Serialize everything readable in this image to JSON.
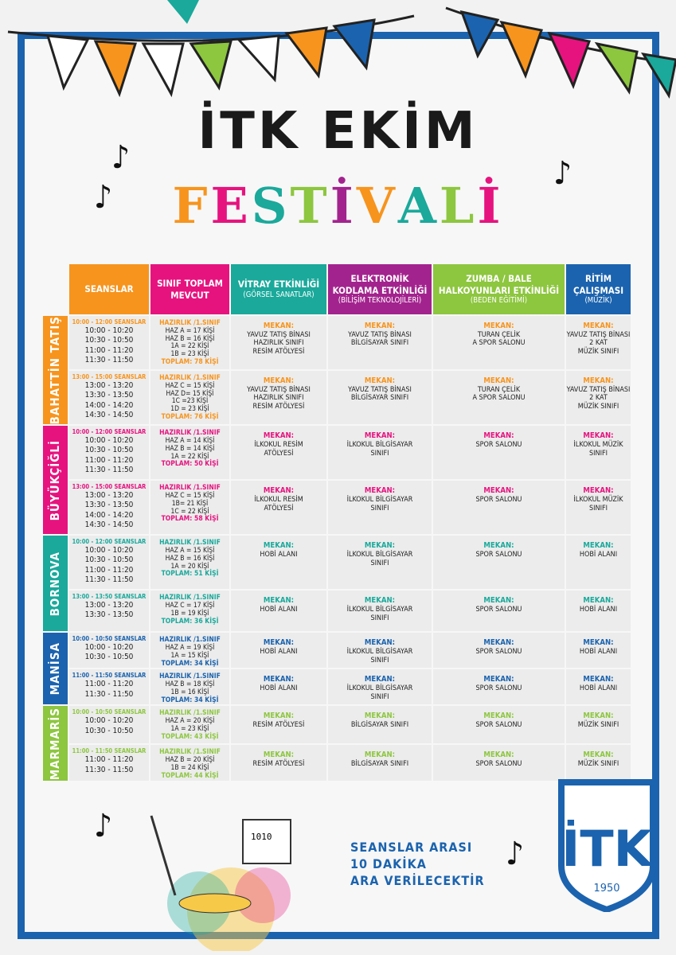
{
  "title": {
    "line1": "İTK EKİM",
    "line2": [
      "F",
      "E",
      "S",
      "T",
      "İ",
      "V",
      "A",
      "L",
      "İ"
    ]
  },
  "colors": {
    "orange": "#f7941d",
    "pink": "#e6137f",
    "teal": "#1aa99b",
    "purple": "#a3238e",
    "green": "#8dc63f",
    "blue": "#1b63ae"
  },
  "headers": [
    {
      "title": "SEANSLAR",
      "sub": "",
      "color": "#f7941d"
    },
    {
      "title": "SINIF TOPLAM MEVCUT",
      "sub": "",
      "color": "#e6137f"
    },
    {
      "title": "VİTRAY ETKİNLİĞİ",
      "sub": "(GÖRSEL SANATLAR)",
      "color": "#1aa99b"
    },
    {
      "title": "ELEKTRONİK KODLAMA ETKİNLİĞİ",
      "sub": "(BİLİŞİM TEKNOLOJİLERİ)",
      "color": "#a3238e"
    },
    {
      "title": "ZUMBA / BALE HALKOYUNLARI ETKİNLİĞİ",
      "sub": "(BEDEN EĞİTİMİ)",
      "color": "#8dc63f"
    },
    {
      "title": "RİTİM ÇALIŞMASI",
      "sub": "(MÜZİK)",
      "color": "#1b63ae"
    }
  ],
  "campuses": [
    {
      "name": "BAHATTİN TATIŞ",
      "color": "#f7941d",
      "sessions": [
        {
          "heading": "10:00 - 12:00 SEANSLAR",
          "times": [
            "10:00 - 10:20",
            "10:30 - 10:50",
            "11:00 - 11:20",
            "11:30 - 11:50"
          ],
          "class_head": "HAZIRLIK /1.SINIF",
          "classes": [
            "HAZ A = 17 KİŞİ",
            "HAZ B = 16 KİŞİ",
            "1A = 22 KİŞİ",
            "1B = 23 KİŞİ"
          ],
          "total": "TOPLAM: 78 KİŞİ",
          "label": "MEKAN:",
          "venues": [
            "YAVUZ TATIŞ BİNASI\nHAZIRLIK SINIFI\nRESİM ATÖLYESİ",
            "YAVUZ TATIŞ BİNASI\nBİLGİSAYAR SINIFI",
            "TURAN ÇELİK\nA SPOR SALONU",
            "YAVUZ TATIŞ BİNASI\n2 KAT\nMÜZİK SINIFI"
          ]
        },
        {
          "heading": "13:00 - 15:00 SEANSLAR",
          "times": [
            "13:00 - 13:20",
            "13:30 - 13:50",
            "14:00 - 14:20",
            "14:30 - 14:50"
          ],
          "class_head": "HAZIRLIK /1.SINIF",
          "classes": [
            "HAZ C = 15 KİŞİ",
            "HAZ D= 15 KİŞİ",
            "1C =23 KİŞİ",
            "1D = 23 KİŞİ"
          ],
          "total": "TOPLAM: 76 KİŞİ",
          "label": "MEKAN:",
          "venues": [
            "YAVUZ TATIŞ BİNASI\nHAZIRLIK SINIFI\nRESİM ATÖLYESİ",
            "YAVUZ TATIŞ BİNASI\nBİLGİSAYAR SINIFI",
            "TURAN ÇELİK\nA SPOR SALONU",
            "YAVUZ TATIŞ BİNASI\n2 KAT\nMÜZİK SINIFI"
          ]
        }
      ]
    },
    {
      "name": "BÜYÜKÇİĞLİ",
      "color": "#e6137f",
      "sessions": [
        {
          "heading": "10:00 - 12:00 SEANSLAR",
          "times": [
            "10:00 - 10:20",
            "10:30 - 10:50",
            "11:00 - 11:20",
            "11:30 - 11:50"
          ],
          "class_head": "HAZIRLIK /1.SINIF",
          "classes": [
            "HAZ A = 14 KİŞİ",
            "HAZ B = 14 KİŞİ",
            "1A = 22 KİŞİ"
          ],
          "total": "TOPLAM: 50 KİŞİ",
          "label": "MEKAN:",
          "venues": [
            "İLKOKUL RESİM\nATÖLYESİ",
            "İLKOKUL BİLGİSAYAR\nSINIFI",
            "SPOR SALONU",
            "İLKOKUL MÜZİK\nSINIFI"
          ]
        },
        {
          "heading": "13:00 - 15:00 SEANSLAR",
          "times": [
            "13:00 - 13:20",
            "13:30 - 13:50",
            "14:00 - 14:20",
            "14:30 - 14:50"
          ],
          "class_head": "HAZIRLIK /1.SINIF",
          "classes": [
            "HAZ C = 15 KİŞİ",
            "1B= 21 KİŞİ",
            "1C = 22 KİŞİ"
          ],
          "total": "TOPLAM: 58 KİŞİ",
          "label": "MEKAN:",
          "venues": [
            "İLKOKUL RESİM\nATÖLYESİ",
            "İLKOKUL BİLGİSAYAR\nSINIFI",
            "SPOR SALONU",
            "İLKOKUL MÜZİK\nSINIFI"
          ]
        }
      ]
    },
    {
      "name": "BORNOVA",
      "color": "#1aa99b",
      "sessions": [
        {
          "heading": "10:00 - 12:00 SEANSLAR",
          "times": [
            "10:00 - 10:20",
            "10:30 - 10:50",
            "11:00 - 11:20",
            "11:30 - 11:50"
          ],
          "class_head": "HAZIRLIK /1.SINIF",
          "classes": [
            "HAZ A = 15 KİŞİ",
            "HAZ B = 16 KİŞİ",
            "1A = 20 KİŞİ"
          ],
          "total": "TOPLAM: 51 KİŞİ",
          "label": "MEKAN:",
          "venues": [
            "HOBİ ALANI",
            "İLKOKUL BİLGİSAYAR\nSINIFI",
            "SPOR SALONU",
            "HOBİ ALANI"
          ]
        },
        {
          "heading": "13:00 - 13:50 SEANSLAR",
          "times": [
            "13:00 - 13:20",
            "13:30 - 13:50"
          ],
          "class_head": "HAZIRLIK /1.SINIF",
          "classes": [
            "HAZ C = 17 KİŞİ",
            "1B = 19 KİŞİ"
          ],
          "total": "TOPLAM: 36 KİŞİ",
          "label": "MEKAN:",
          "venues": [
            "HOBİ ALANI",
            "İLKOKUL BİLGİSAYAR\nSINIFI",
            "SPOR SALONU",
            "HOBİ ALANI"
          ]
        }
      ]
    },
    {
      "name": "MANİSA",
      "color": "#1b63ae",
      "sessions": [
        {
          "heading": "10:00 - 10:50 SEANSLAR",
          "times": [
            "10:00 - 10:20",
            "10:30 - 10:50"
          ],
          "class_head": "HAZIRLIK /1.SINIF",
          "classes": [
            "HAZ A = 19 KİŞİ",
            "1A = 15 KİŞİ"
          ],
          "total": "TOPLAM: 34 KİŞİ",
          "label": "MEKAN:",
          "venues": [
            "HOBİ ALANI",
            "İLKOKUL BİLGİSAYAR\nSINIFI",
            "SPOR SALONU",
            "HOBİ ALANI"
          ]
        },
        {
          "heading": "11:00 - 11:50 SEANSLAR",
          "times": [
            "11:00 - 11:20",
            "11:30 - 11:50"
          ],
          "class_head": "HAZIRLIK /1.SINIF",
          "classes": [
            "HAZ B = 18 KİŞİ",
            "1B = 16 KİŞİ"
          ],
          "total": "TOPLAM: 34 KİŞİ",
          "label": "MEKAN:",
          "venues": [
            "HOBİ ALANI",
            "İLKOKUL BİLGİSAYAR\nSINIFI",
            "SPOR SALONU",
            "HOBİ ALANI"
          ]
        }
      ]
    },
    {
      "name": "MARMARİS",
      "color": "#8dc63f",
      "sessions": [
        {
          "heading": "10:00 - 10:50 SEANSLAR",
          "times": [
            "10:00 - 10:20",
            "10:30 - 10:50"
          ],
          "class_head": "HAZIRLIK /1.SINIF",
          "classes": [
            "HAZ A = 20 KİŞİ",
            "1A = 23 KİŞİ"
          ],
          "total": "TOPLAM: 43 KİŞİ",
          "label": "MEKAN:",
          "venues": [
            "RESİM ATÖLYESİ",
            "BİLGİSAYAR SINIFI",
            "SPOR SALONU",
            "MÜZİK SINIFI"
          ]
        },
        {
          "heading": "11:00 - 11:50 SEANSLAR",
          "times": [
            "11:00 - 11:20",
            "11:30 - 11:50"
          ],
          "class_head": "HAZIRLIK /1.SINIF",
          "classes": [
            "HAZ B = 20 KİŞİ",
            "1B = 24 KİŞİ"
          ],
          "total": "TOPLAM: 44 KİŞİ",
          "label": "MEKAN:",
          "venues": [
            "RESİM ATÖLYESİ",
            "BİLGİSAYAR SINIFI",
            "SPOR SALONU",
            "MÜZİK SINIFI"
          ]
        }
      ]
    }
  ],
  "footer": {
    "lines": [
      "SEANSLAR ARASI",
      "10 DAKİKA",
      "ARA VERİLECEKTİR"
    ],
    "logo_text": "İTK",
    "logo_year": "1950",
    "computer_text": "1010"
  }
}
